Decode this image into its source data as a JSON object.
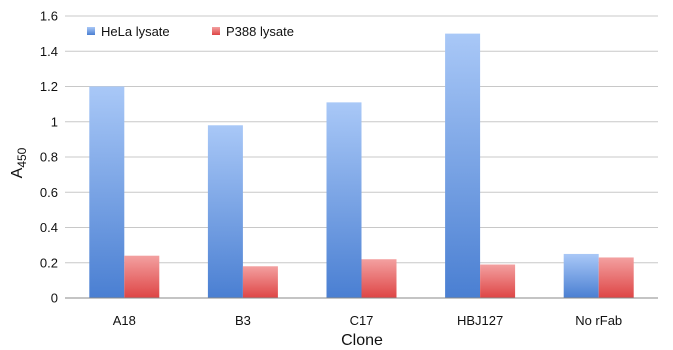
{
  "chart_data": {
    "type": "bar",
    "categories": [
      "A18",
      "B3",
      "C17",
      "HBJ127",
      "No rFab"
    ],
    "series": [
      {
        "name": "HeLa lysate",
        "values": [
          1.2,
          0.98,
          1.11,
          1.5,
          0.25
        ],
        "color": "#5b8fdc"
      },
      {
        "name": "P388 lysate",
        "values": [
          0.24,
          0.18,
          0.22,
          0.19,
          0.23
        ],
        "color": "#e04848"
      }
    ],
    "title": "",
    "xlabel": "Clone",
    "ylabel_main": "A",
    "ylabel_sub": "450",
    "ylim": [
      0,
      1.6
    ],
    "yticks": [
      "0",
      "0.2",
      "0.4",
      "0.6",
      "0.8",
      "1",
      "1.2",
      "1.4",
      "1.6"
    ],
    "grid": true,
    "legend_position": "top-left"
  }
}
